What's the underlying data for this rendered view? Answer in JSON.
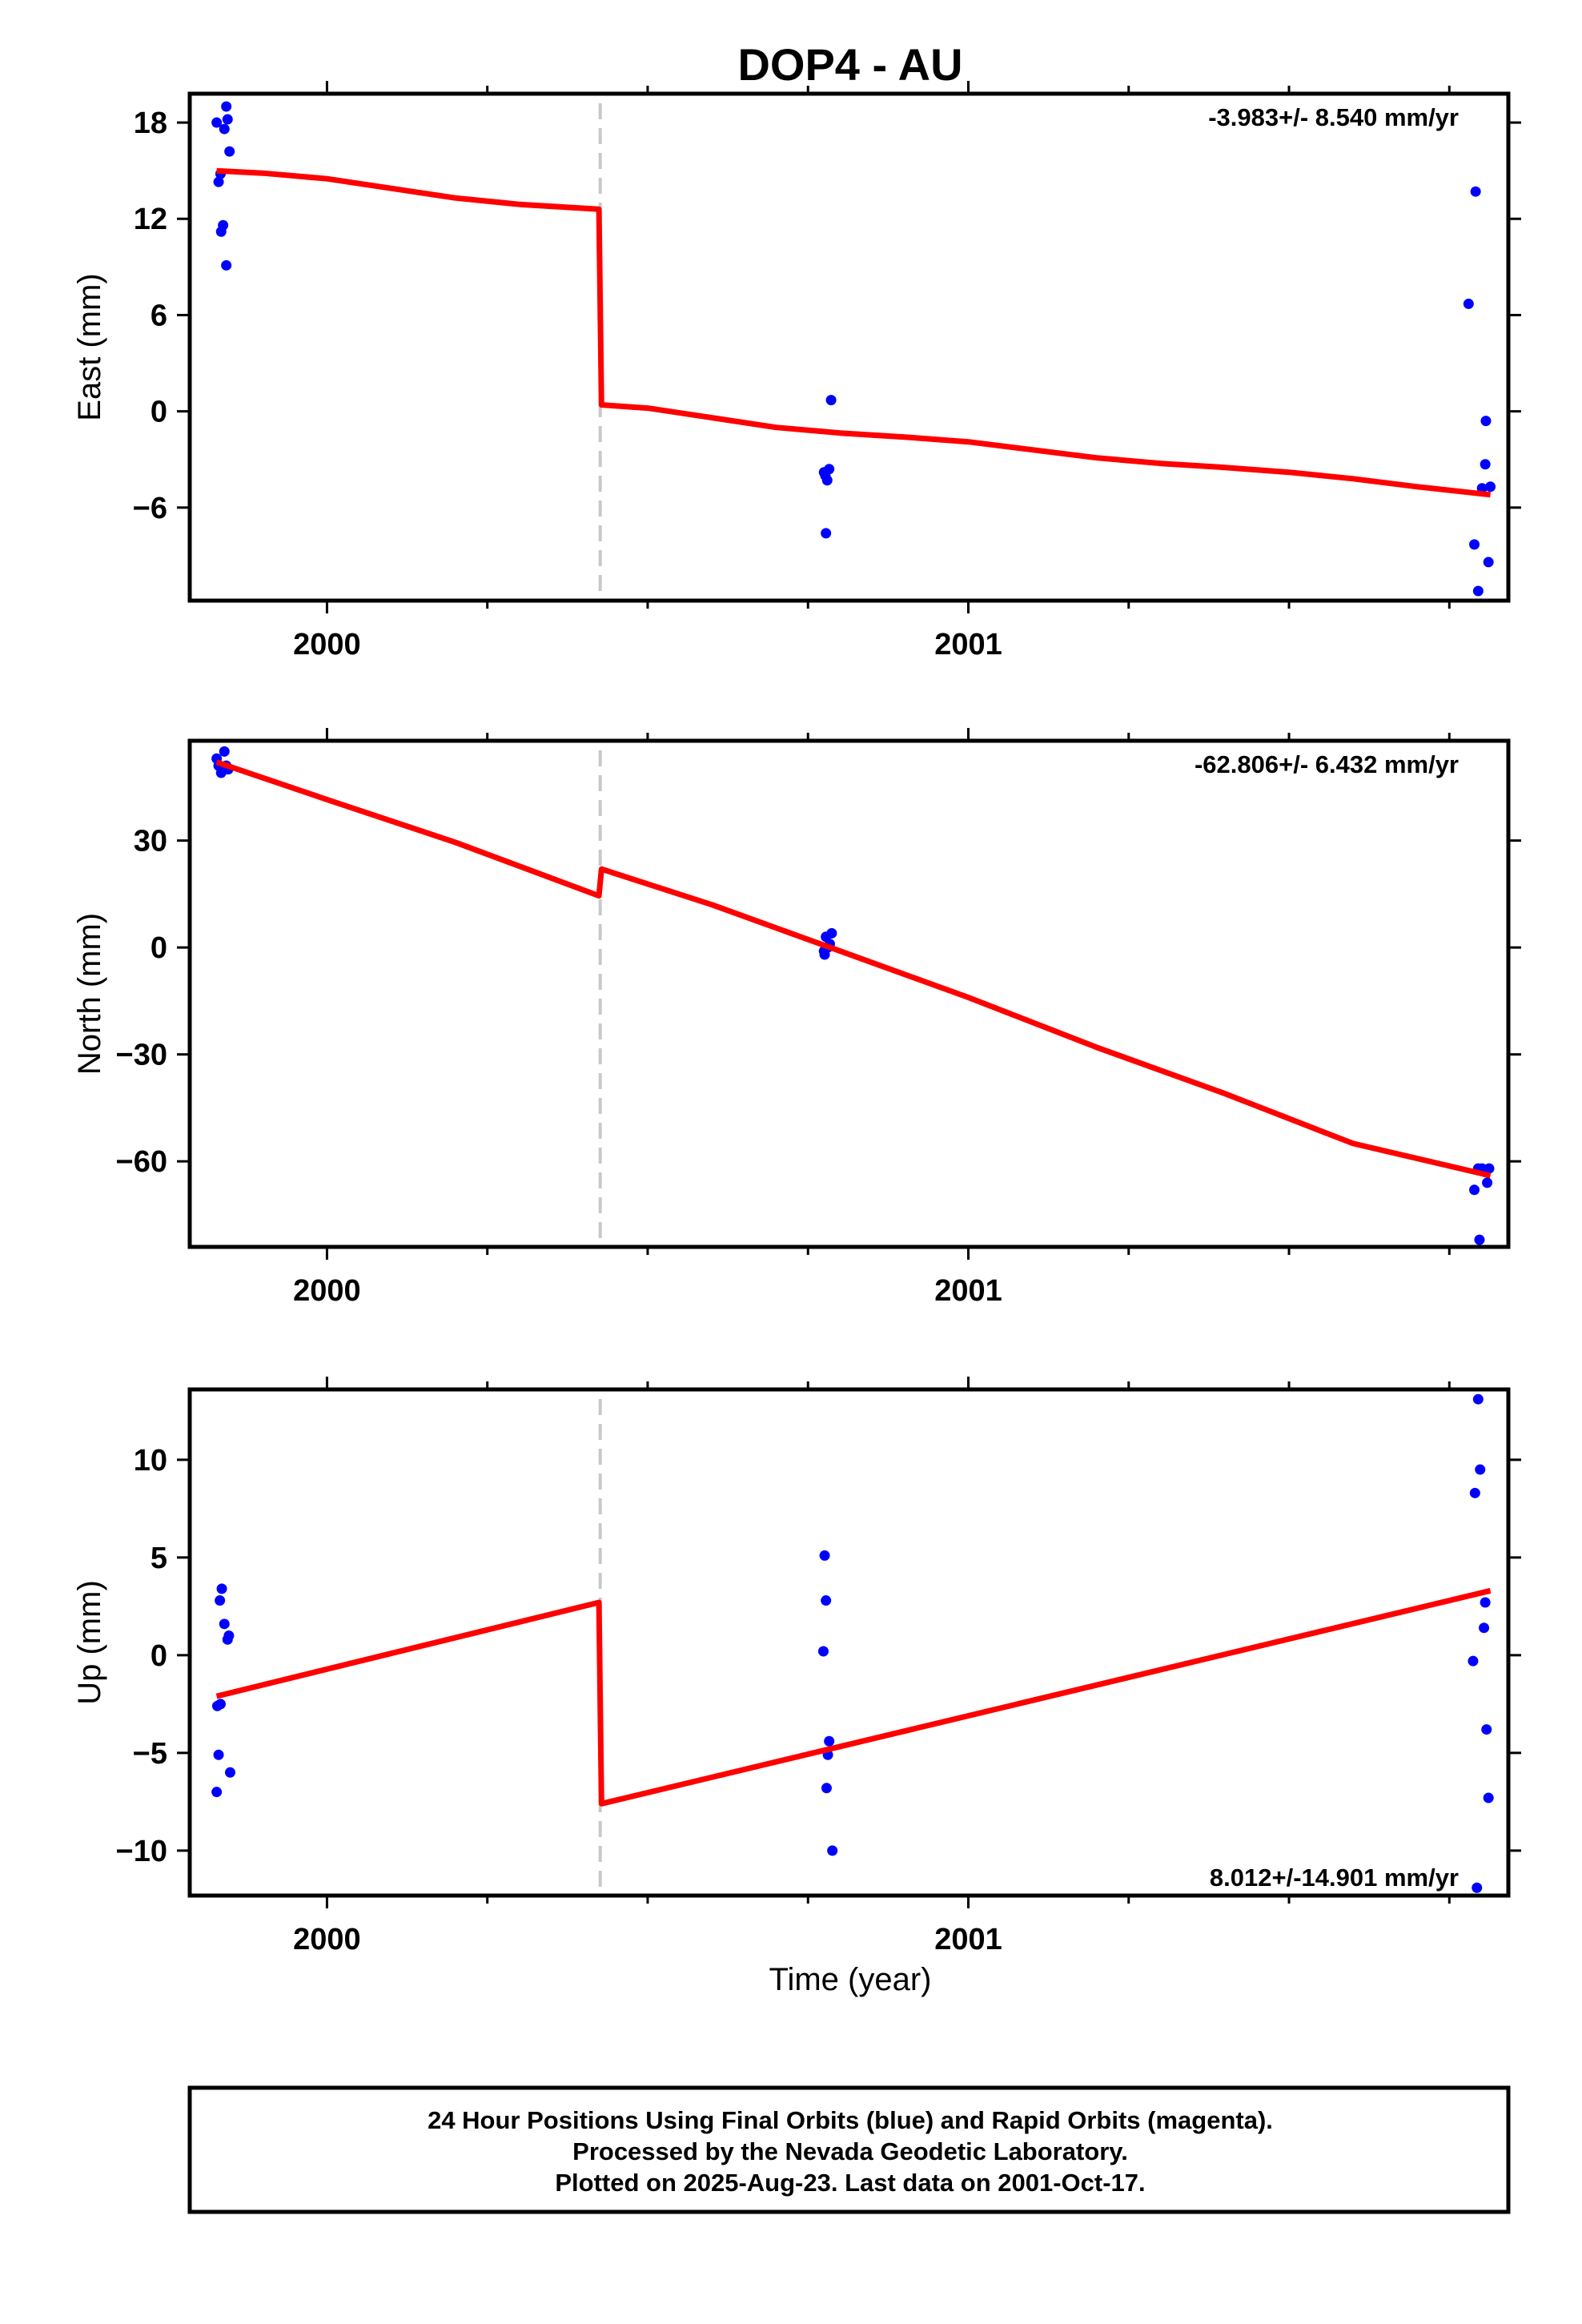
{
  "title": "DOP4 - AU",
  "xlabel": "Time (year)",
  "colors": {
    "final_orbits": "#0000ff",
    "fit_line": "#ff0000",
    "break_line": "#c8c8c8",
    "frame": "#000000"
  },
  "footer": {
    "line1": "24 Hour Positions Using Final Orbits (blue) and Rapid Orbits (magenta).",
    "line2": "Processed by the Nevada Geodetic Laboratory.",
    "line3": "Plotted on 2025-Aug-23. Last data on 2001-Oct-17."
  },
  "chart_data": [
    {
      "type": "scatter",
      "ylabel": "East (mm)",
      "rate_label": "-3.983+/- 8.540 mm/yr",
      "xlim": [
        1999.786,
        2001.842
      ],
      "ylim": [
        -11.8,
        19.8
      ],
      "x_ticks": [
        2000,
        2001
      ],
      "y_ticks": [
        -6,
        0,
        6,
        12,
        18
      ],
      "y_tick_labels": [
        "−6",
        "0",
        "6",
        "12",
        "18"
      ],
      "break_x": 2000.426,
      "points": [
        [
          1999.828,
          18.0
        ],
        [
          1999.843,
          19.0
        ],
        [
          1999.84,
          17.6
        ],
        [
          1999.845,
          18.2
        ],
        [
          1999.848,
          16.2
        ],
        [
          1999.831,
          14.3
        ],
        [
          1999.834,
          14.8
        ],
        [
          1999.838,
          11.6
        ],
        [
          1999.835,
          11.2
        ],
        [
          1999.843,
          9.1
        ],
        [
          2000.786,
          0.7
        ],
        [
          2000.775,
          -3.8
        ],
        [
          2000.777,
          -4.0
        ],
        [
          2000.78,
          -4.3
        ],
        [
          2000.783,
          -3.6
        ],
        [
          2000.778,
          -7.6
        ],
        [
          2001.791,
          13.7
        ],
        [
          2001.78,
          6.7
        ],
        [
          2001.807,
          -0.6
        ],
        [
          2001.806,
          -3.3
        ],
        [
          2001.801,
          -4.8
        ],
        [
          2001.814,
          -4.7
        ],
        [
          2001.789,
          -8.3
        ],
        [
          2001.811,
          -9.4
        ],
        [
          2001.795,
          -11.2
        ]
      ],
      "fit_line": [
        [
          1999.828,
          15.0
        ],
        [
          1999.9,
          14.85
        ],
        [
          2000.0,
          14.5
        ],
        [
          2000.1,
          13.9
        ],
        [
          2000.2,
          13.3
        ],
        [
          2000.3,
          12.9
        ],
        [
          2000.424,
          12.6
        ],
        [
          2000.428,
          0.4
        ],
        [
          2000.5,
          0.2
        ],
        [
          2000.6,
          -0.4
        ],
        [
          2000.7,
          -1.0
        ],
        [
          2000.8,
          -1.35
        ],
        [
          2000.9,
          -1.6
        ],
        [
          2001.0,
          -1.9
        ],
        [
          2001.1,
          -2.4
        ],
        [
          2001.2,
          -2.9
        ],
        [
          2001.3,
          -3.25
        ],
        [
          2001.4,
          -3.5
        ],
        [
          2001.5,
          -3.8
        ],
        [
          2001.6,
          -4.2
        ],
        [
          2001.7,
          -4.7
        ],
        [
          2001.814,
          -5.2
        ]
      ]
    },
    {
      "type": "scatter",
      "ylabel": "North (mm)",
      "rate_label": "-62.806+/- 6.432 mm/yr",
      "xlim": [
        1999.786,
        2001.842
      ],
      "ylim": [
        -84,
        58
      ],
      "x_ticks": [
        2000,
        2001
      ],
      "y_ticks": [
        -60,
        -30,
        0,
        30
      ],
      "y_tick_labels": [
        "−60",
        "−30",
        "0",
        "30"
      ],
      "break_x": 2000.426,
      "points": [
        [
          1999.828,
          53
        ],
        [
          1999.831,
          51
        ],
        [
          1999.84,
          55
        ],
        [
          1999.838,
          50
        ],
        [
          1999.843,
          51
        ],
        [
          1999.846,
          50
        ],
        [
          1999.835,
          49
        ],
        [
          2000.775,
          -1
        ],
        [
          2000.778,
          3
        ],
        [
          2000.781,
          0
        ],
        [
          2000.784,
          1
        ],
        [
          2000.787,
          4
        ],
        [
          2000.776,
          -2
        ],
        [
          2001.789,
          -68
        ],
        [
          2001.795,
          -62
        ],
        [
          2001.801,
          -62
        ],
        [
          2001.806,
          -63
        ],
        [
          2001.809,
          -66
        ],
        [
          2001.812,
          -62
        ],
        [
          2001.797,
          -82
        ]
      ],
      "fit_line": [
        [
          1999.828,
          52
        ],
        [
          2000.0,
          41.5
        ],
        [
          2000.2,
          29.5
        ],
        [
          2000.424,
          14.5
        ],
        [
          2000.428,
          22
        ],
        [
          2000.6,
          12
        ],
        [
          2000.8,
          -1
        ],
        [
          2001.0,
          -14
        ],
        [
          2001.2,
          -28
        ],
        [
          2001.4,
          -41
        ],
        [
          2001.6,
          -55
        ],
        [
          2001.814,
          -64
        ]
      ]
    },
    {
      "type": "scatter",
      "ylabel": "Up (mm)",
      "rate_label": "8.012+/-14.901 mm/yr",
      "xlim": [
        1999.786,
        2001.842
      ],
      "ylim": [
        -12.3,
        13.6
      ],
      "x_ticks": [
        2000,
        2001
      ],
      "y_ticks": [
        -10,
        -5,
        0,
        5,
        10
      ],
      "y_tick_labels": [
        "−10",
        "−5",
        "0",
        "5",
        "10"
      ],
      "break_x": 2000.426,
      "points": [
        [
          1999.833,
          2.8
        ],
        [
          1999.836,
          3.4
        ],
        [
          1999.84,
          1.6
        ],
        [
          1999.845,
          0.8
        ],
        [
          1999.847,
          1.0
        ],
        [
          1999.829,
          -2.6
        ],
        [
          1999.834,
          -2.5
        ],
        [
          1999.831,
          -5.1
        ],
        [
          1999.849,
          -6.0
        ],
        [
          1999.828,
          -7.0
        ],
        [
          2000.776,
          5.1
        ],
        [
          2000.778,
          2.8
        ],
        [
          2000.774,
          0.2
        ],
        [
          2000.783,
          -4.4
        ],
        [
          2000.781,
          -5.1
        ],
        [
          2000.779,
          -6.8
        ],
        [
          2000.788,
          -10.0
        ],
        [
          2001.795,
          13.1
        ],
        [
          2001.798,
          9.5
        ],
        [
          2001.79,
          8.3
        ],
        [
          2001.806,
          2.7
        ],
        [
          2001.804,
          1.4
        ],
        [
          2001.787,
          -0.3
        ],
        [
          2001.808,
          -3.8
        ],
        [
          2001.811,
          -7.3
        ],
        [
          2001.793,
          -11.9
        ]
      ],
      "fit_line": [
        [
          1999.828,
          -2.1
        ],
        [
          2000.424,
          2.7
        ],
        [
          2000.428,
          -7.6
        ],
        [
          2001.814,
          3.3
        ]
      ]
    }
  ]
}
